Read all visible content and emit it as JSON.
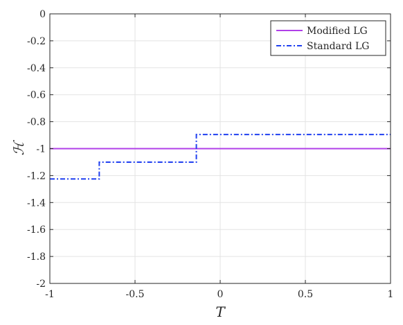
{
  "chart_data": {
    "type": "line",
    "title": "",
    "xlabel": "T",
    "ylabel": "ℋ",
    "xlim": [
      -1,
      1
    ],
    "ylim": [
      -2,
      0
    ],
    "xticks": [
      -1,
      -0.5,
      0,
      0.5,
      1
    ],
    "xtick_labels": [
      "-1",
      "-0.5",
      "0",
      "0.5",
      "1"
    ],
    "yticks": [
      0,
      -0.2,
      -0.4,
      -0.6,
      -0.8,
      -1,
      -1.2,
      -1.4,
      -1.6,
      -1.8,
      -2
    ],
    "ytick_labels": [
      "0",
      "-0.2",
      "-0.4",
      "-0.6",
      "-0.8",
      "-1",
      "-1.2",
      "-1.4",
      "-1.6",
      "-1.8",
      "-2"
    ],
    "grid": true,
    "legend_position": "top-right",
    "series": [
      {
        "name": "Modified LG",
        "color": "#b03fe8",
        "style": "solid",
        "x": [
          -1,
          1
        ],
        "y": [
          -1,
          -1
        ]
      },
      {
        "name": "Standard LG",
        "color": "#1f3ff0",
        "style": "dash-dot",
        "x": [
          -1,
          -0.71,
          -0.71,
          -0.14,
          -0.14,
          1
        ],
        "y": [
          -1.225,
          -1.225,
          -1.1,
          -1.1,
          -0.895,
          -0.895
        ]
      }
    ]
  }
}
